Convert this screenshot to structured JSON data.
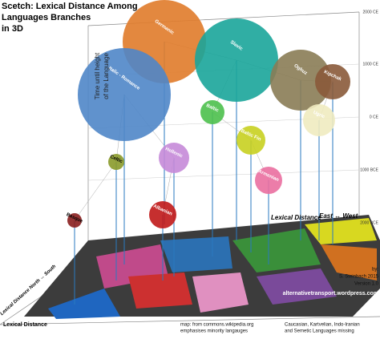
{
  "header": {
    "title_lines": [
      "Scetch: Lexical Distance Among",
      "Languages Branches",
      "in 3D"
    ]
  },
  "axes": {
    "vertical": [
      "Time until height",
      "of the Language"
    ],
    "time_ticks": [
      "2000 CE",
      "1000 CE",
      "0 CE",
      "1000 BCE",
      "2000 BCE"
    ],
    "east_west": "Lexical Distance",
    "east_west_dir": "East ↔ West",
    "north_south": "Lexical Distance North ↔ South",
    "bottom": "Lexical Distance"
  },
  "branches": [
    "Germanic",
    "Slavic",
    "Italic - Romance",
    "Oghuz",
    "Kipchak",
    "Ugric",
    "Baltic",
    "Baltic Fin",
    "Hellenic",
    "Celtic",
    "Armenian",
    "Albanian",
    "Basque"
  ],
  "credits": {
    "author": [
      "by:",
      "S. Steinbach 2015",
      "Version 1.0"
    ],
    "site": "alternativetransport.wordpress.com",
    "map_note": [
      "map: from commons.wikipedia.org",
      "emphasises minority langauges"
    ],
    "missing_note": [
      "Caucasian, Kartvelian, Indo-Iranian",
      "and Semetic Languages missing"
    ]
  }
}
